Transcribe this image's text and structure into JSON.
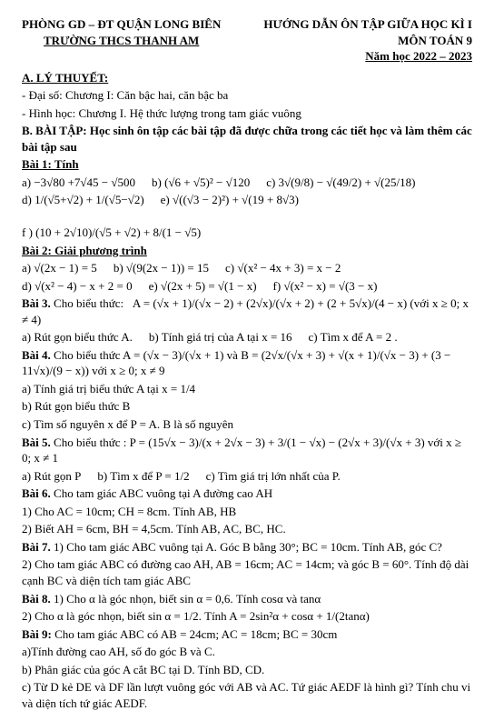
{
  "header": {
    "left_line1": "PHÒNG GD – ĐT QUẬN LONG BIÊN",
    "left_line2": "TRƯỜNG THCS THANH AM",
    "right_line1": "HƯỚNG DẪN ÔN TẬP GIỮA HỌC KÌ I",
    "right_line2": "MÔN TOÁN 9",
    "right_line3": "Năm học 2022 – 2023"
  },
  "A_title": "A. LÝ THUYẾT:",
  "A_items": [
    "- Đại số: Chương I: Căn bậc hai, căn bậc ba",
    "- Hình học: Chương I. Hệ thức lượng trong tam giác vuông"
  ],
  "B_title": "B. BÀI TẬP: Học sinh ôn tập các bài tập đã được chữa trong các tiết học và làm thêm các bài tập sau",
  "bai1_title": "Bài 1: Tính",
  "bai1": {
    "a": "a)  −3√80 +7√45  − √500",
    "b": "b)  (√6 + √5)² − √120",
    "c": "c)  3√(9/8) − √(49/2) + √(25/18)",
    "d": "d)  1/(√5+√2) + 1/(√5−√2)",
    "e": "e)  √((√3 − 2)²) + √(19 + 8√3)",
    "f": "f )  (10 + 2√10)/(√5 + √2) + 8/(1 − √5)"
  },
  "bai2_title": "Bài 2: Giải phương trình",
  "bai2": {
    "a": "a)  √(2x − 1) = 5",
    "b": "b)  √(9(2x − 1)) = 15",
    "c": "c)  √(x² − 4x + 3) = x − 2",
    "d": "d)  √(x² − 4) − x + 2 = 0",
    "e": "e)  √(2x + 5) = √(1 − x)",
    "f": "f)  √(x² − x) = √(3 − x)"
  },
  "bai3_label": "Bài 3.",
  "bai3_intro": " Cho biểu thức:",
  "bai3_expr": "A = (√x + 1)/(√x − 2) + (2√x)/(√x + 2) + (2 + 5√x)/(4 − x)  (với  x ≥ 0; x ≠ 4)",
  "bai3_parts": {
    "a": "a) Rút gọn biểu thức A.",
    "b": "b) Tính giá trị của A tại x = 16",
    "c": "c) Tìm x để  A = 2 ."
  },
  "bai4_label": "Bài 4.",
  "bai4_text": " Cho biểu thức A = (√x − 3)/(√x + 1) và B = (2√x/(√x + 3) + √(x + 1)/(√x − 3) + (3 − 11√x)/(9 − x))  với  x ≥ 0; x ≠ 9",
  "bai4_parts": {
    "a": "a) Tính giá trị biểu thức A tại x = 1/4",
    "b": "b) Rút gọn biểu thức B",
    "c": "c) Tìm số nguyên x để P = A. B là số nguyên"
  },
  "bai5_label": "Bài 5.",
  "bai5_text": " Cho biểu thức :  P = (15√x − 3)/(x + 2√x − 3) + 3/(1 − √x) − (2√x + 3)/(√x + 3)  với  x ≥ 0; x ≠ 1",
  "bai5_parts": {
    "a": "a) Rút gọn P",
    "b": "b) Tìm x để P = 1/2",
    "c": "c) Tìm giá trị lớn nhất của P."
  },
  "bai6_label": "Bài 6.",
  "bai6_text": " Cho tam giác ABC vuông tại A đường cao AH",
  "bai6_parts": {
    "p1": "1) Cho AC = 10cm; CH = 8cm. Tính AB, HB",
    "p2": "2) Biết AH = 6cm, BH = 4,5cm. Tính AB, AC, BC, HC."
  },
  "bai7_label": "Bài 7.",
  "bai7_p1": " 1) Cho tam giác ABC vuông tại A. Góc B bằng 30°; BC = 10cm. Tính AB, góc C?",
  "bai7_p2": "2) Cho tam giác ABC có đường cao AH, AB = 16cm; AC = 14cm; và góc B = 60°. Tính độ dài cạnh BC và diện tích tam giác ABC",
  "bai8_label": "Bài 8.",
  "bai8_p1": " 1) Cho α là góc nhọn, biết sin α = 0,6. Tính cosα và tanα",
  "bai8_p2": "2) Cho α là góc nhọn, biết sin α = 1/2. Tính A = 2sin²α + cosα + 1/(2tanα)",
  "bai9_label": "Bài 9:",
  "bai9_intro": " Cho tam giác ABC có AB = 24cm; AC = 18cm; BC = 30cm",
  "bai9_parts": {
    "a": "a)Tính đường cao AH, số đo góc B và C.",
    "b": "b) Phân giác của góc A cắt BC tại D. Tính BD, CD.",
    "c": "c) Từ D kẻ DE và DF lần lượt vuông góc với AB và AC. Tứ giác AEDF là hình gì? Tính chu vi và diện tích tứ giác AEDF."
  }
}
